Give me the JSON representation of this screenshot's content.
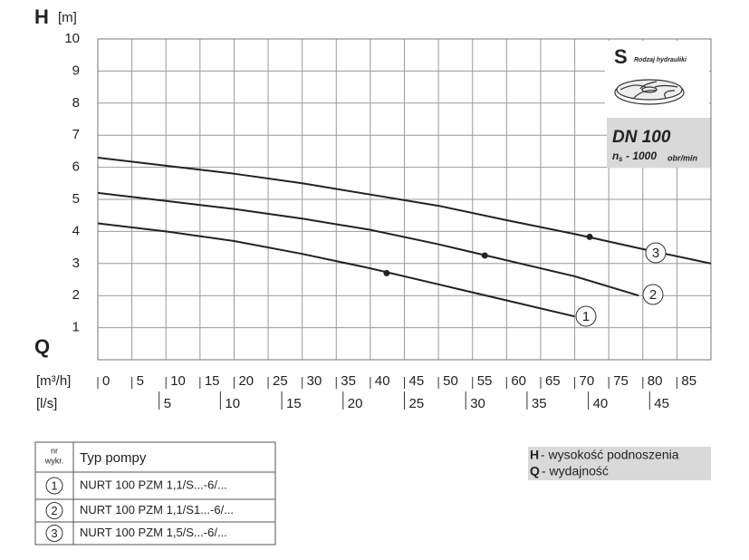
{
  "chart_data": {
    "type": "line",
    "y_symbol": "H",
    "y_unit": "[m]",
    "x_symbol": "Q",
    "x_unit": "[m³/h]",
    "x2_unit": "[l/s]",
    "xlim": [
      0,
      90
    ],
    "xticks": [
      0,
      5,
      10,
      15,
      20,
      25,
      30,
      35,
      40,
      45,
      50,
      55,
      60,
      65,
      70,
      75,
      80,
      85
    ],
    "x2lim": [
      0,
      50
    ],
    "x2ticks": [
      5,
      10,
      15,
      20,
      25,
      30,
      35,
      40,
      45
    ],
    "ylim": [
      0,
      10
    ],
    "yticks": [
      1,
      2,
      3,
      4,
      5,
      6,
      7,
      8,
      9,
      10
    ],
    "grid": true,
    "series": [
      {
        "name": "1",
        "color": "#222222",
        "x": [
          0,
          10,
          20,
          30,
          40,
          50,
          60,
          70
        ],
        "values": [
          4.25,
          4.0,
          3.7,
          3.3,
          2.85,
          2.35,
          1.85,
          1.35
        ],
        "point": [
          42.4,
          2.7
        ]
      },
      {
        "name": "2",
        "color": "#222222",
        "x": [
          0,
          10,
          20,
          30,
          40,
          50,
          60,
          70,
          79.4
        ],
        "values": [
          5.2,
          4.95,
          4.7,
          4.4,
          4.05,
          3.6,
          3.1,
          2.6,
          2.0
        ],
        "point": [
          56.8,
          3.25
        ]
      },
      {
        "name": "3",
        "color": "#222222",
        "x": [
          0,
          10,
          20,
          30,
          40,
          50,
          60,
          70,
          80,
          90
        ],
        "values": [
          6.3,
          6.05,
          5.8,
          5.5,
          5.15,
          4.8,
          4.35,
          3.92,
          3.45,
          3.0
        ],
        "point": [
          72.2,
          3.83
        ]
      }
    ],
    "inset": {
      "letter": "S",
      "caption": "Rodzaj hydrauliki",
      "dn": "DN 100",
      "n": "n",
      "n_sub": "s",
      "speed": "- 1000",
      "speed_unit": "obr/min"
    },
    "notes": [
      {
        "symbol": "H",
        "text": "- wysokość podnoszenia"
      },
      {
        "symbol": "Q",
        "text": "- wydajność"
      }
    ]
  },
  "table": {
    "header": [
      "nr",
      "wykr.",
      "Typ pompy"
    ],
    "rows": [
      [
        "1",
        "NURT 100 PZM 1,1/S...-6/..."
      ],
      [
        "2",
        "NURT 100 PZM 1,1/S1...-6/..."
      ],
      [
        "3",
        "NURT 100 PZM 1,5/S...-6/..."
      ]
    ]
  }
}
